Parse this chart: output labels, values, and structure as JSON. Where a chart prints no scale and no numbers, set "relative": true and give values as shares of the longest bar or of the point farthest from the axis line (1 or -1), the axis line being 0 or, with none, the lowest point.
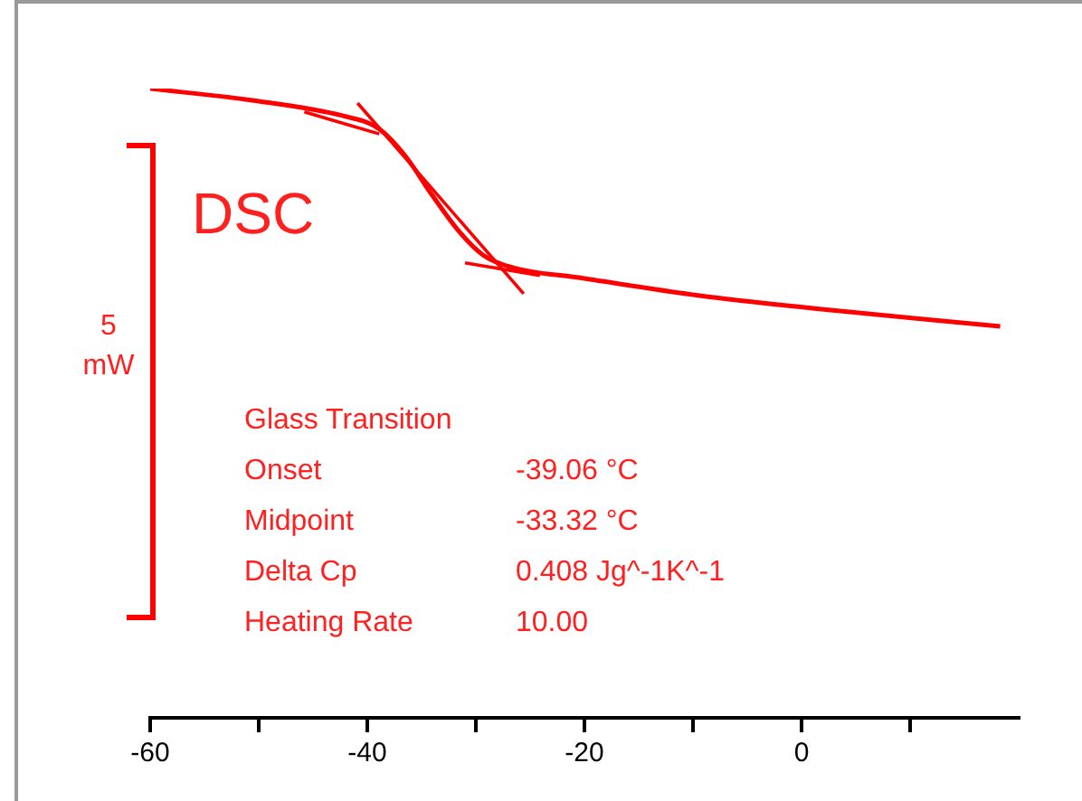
{
  "chart_data": {
    "type": "line",
    "title": "DSC",
    "ylabel": "5 mW",
    "relative": true,
    "xlim": [
      -60,
      20
    ],
    "xticks": [
      -60,
      {
        "value": -50,
        "label": null
      },
      -40,
      {
        "value": -30,
        "label": null
      },
      -20,
      {
        "value": -10,
        "label": null
      },
      0,
      {
        "value": 10,
        "label": null
      }
    ],
    "series": [
      {
        "type": "line",
        "color": "#ff0000",
        "x": [
          -60,
          -50,
          -42.3,
          -39,
          -36.5,
          -34,
          -31.5,
          -29.3,
          -26.5,
          -20.7,
          -9.4,
          1,
          18.3
        ],
        "values": [
          1,
          0.98,
          0.957,
          0.937,
          0.893,
          0.83,
          0.772,
          0.735,
          0.715,
          0.7,
          0.671,
          0.651,
          0.622
        ]
      },
      {
        "type": "line",
        "color": "#ff0000",
        "x": [
          -45.8,
          -38.9
        ],
        "values": [
          0.963,
          0.928
        ]
      },
      {
        "type": "line",
        "color": "#ff0000",
        "x": [
          -40.9,
          -25.6
        ],
        "values": [
          0.977,
          0.674
        ]
      },
      {
        "type": "line",
        "color": "#ff0000",
        "x": [
          -31,
          -24.1
        ],
        "values": [
          0.723,
          0.703
        ]
      }
    ],
    "annotations": [
      "Glass Transition",
      "Onset",
      "-39.06 °C",
      "Midpoint",
      "-33.32 °C",
      "Delta Cp",
      "0.408 Jg^-1K^-1",
      "Heating Rate",
      "10.00"
    ]
  }
}
